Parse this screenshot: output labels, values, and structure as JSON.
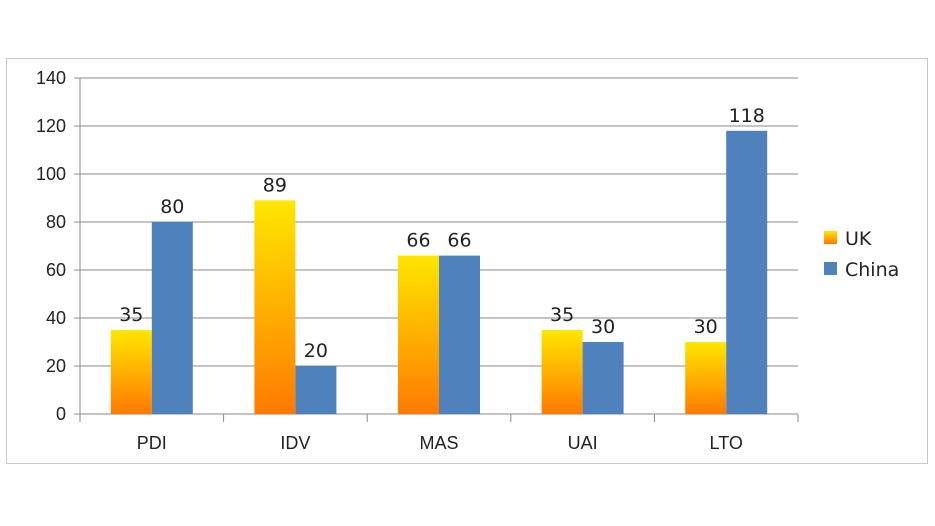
{
  "chart_data": {
    "type": "bar",
    "categories": [
      "PDI",
      "IDV",
      "MAS",
      "UAI",
      "LTO"
    ],
    "series": [
      {
        "name": "UK",
        "values": [
          35,
          89,
          66,
          35,
          30
        ],
        "color": "#FF8C00",
        "gradient": [
          "#FFE600",
          "#FF7A00"
        ]
      },
      {
        "name": "China",
        "values": [
          80,
          20,
          66,
          30,
          118
        ],
        "color": "#4F81BD"
      }
    ],
    "ylim": [
      0,
      140
    ],
    "yticks": [
      0,
      20,
      40,
      60,
      80,
      100,
      120,
      140
    ],
    "grid": true,
    "legend": "right",
    "data_labels": true,
    "title": "",
    "xlabel": "",
    "ylabel": ""
  }
}
